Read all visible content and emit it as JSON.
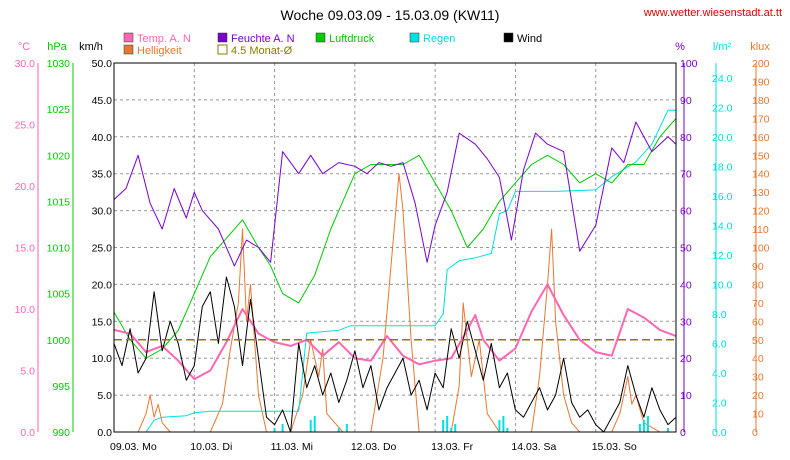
{
  "header": {
    "title": "Woche 09.03.09 - 15.03.09 (KW11)",
    "url": "www.wetter.wiesenstadt.at.tt"
  },
  "colors": {
    "temp": "#ff66b3",
    "humidity": "#7a00cc",
    "pressure": "#00cc00",
    "rain": "#00e0e0",
    "wind": "#000000",
    "brightness": "#e87830",
    "avg": "#8a7a00",
    "grid": "#999999"
  },
  "legend": [
    {
      "key": "temp",
      "label": "Temp. A. N",
      "icon": "filled-square"
    },
    {
      "key": "humidity",
      "label": "Feuchte A. N",
      "icon": "filled-square"
    },
    {
      "key": "pressure",
      "label": "Luftdruck",
      "icon": "filled-square"
    },
    {
      "key": "rain",
      "label": "Regen",
      "icon": "filled-square"
    },
    {
      "key": "wind",
      "label": "Wind",
      "icon": "filled-square"
    },
    {
      "key": "brightness",
      "label": "Helligkeit",
      "icon": "filled-square"
    },
    {
      "key": "avg",
      "label": "4.5 Monat-Ø",
      "icon": "hollow-square"
    }
  ],
  "chart_data": {
    "type": "line",
    "title": "Woche 09.03.09 - 15.03.09 (KW11)",
    "x_unit": "days",
    "x_range": [
      0,
      7
    ],
    "x_ticks": [
      "09.03. Mo",
      "10.03. Di",
      "11.03. Mi",
      "12.03. Do",
      "13.03. Fr",
      "14.03. Sa",
      "15.03. So"
    ],
    "grid": true,
    "legend_position": "top",
    "axes": {
      "temp": {
        "unit": "°C",
        "range": [
          0,
          30
        ],
        "ticks": [
          "0.0",
          "5.0",
          "10.0",
          "15.0",
          "20.0",
          "25.0",
          "30.0"
        ]
      },
      "pressure": {
        "unit": "hPa",
        "range": [
          990,
          1030
        ],
        "ticks": [
          "990",
          "995",
          "1000",
          "1005",
          "1010",
          "1015",
          "1020",
          "1025",
          "1030"
        ]
      },
      "wind": {
        "unit": "km/h",
        "range": [
          0,
          50
        ],
        "ticks": [
          "0.0",
          "5.0",
          "10.0",
          "15.0",
          "20.0",
          "25.0",
          "30.0",
          "35.0",
          "40.0",
          "45.0",
          "50.0"
        ]
      },
      "humidity": {
        "unit": "%",
        "range": [
          0,
          100
        ],
        "ticks": [
          "0",
          "10",
          "20",
          "30",
          "40",
          "50",
          "60",
          "70",
          "80",
          "90",
          "100"
        ]
      },
      "rain": {
        "unit": "l/m²",
        "range": [
          0,
          25
        ],
        "ticks": [
          "0.0",
          "2.0",
          "4.0",
          "6.0",
          "8.0",
          "10.0",
          "12.0",
          "14.0",
          "16.0",
          "18.0",
          "20.0",
          "22.0",
          "24.0"
        ]
      },
      "brightness": {
        "unit": "klux",
        "range": [
          0,
          200
        ],
        "ticks": [
          "0",
          "10",
          "20",
          "30",
          "40",
          "50",
          "60",
          "70",
          "80",
          "90",
          "100",
          "110",
          "120",
          "130",
          "140",
          "150",
          "160",
          "170",
          "180",
          "190",
          "200"
        ]
      }
    },
    "series": [
      {
        "name": "Temp. A. N",
        "key": "temp",
        "axis": "temp",
        "x": [
          0,
          0.2,
          0.4,
          0.6,
          0.8,
          1.0,
          1.2,
          1.4,
          1.6,
          1.8,
          2.0,
          2.2,
          2.4,
          2.6,
          2.8,
          3.0,
          3.2,
          3.4,
          3.6,
          3.8,
          4.0,
          4.2,
          4.4,
          4.5,
          4.6,
          4.8,
          5.0,
          5.2,
          5.4,
          5.6,
          5.8,
          6.0,
          6.2,
          6.4,
          6.6,
          6.8,
          7.0
        ],
        "values": [
          8.3,
          8.0,
          6.5,
          7.0,
          5.8,
          4.3,
          5.0,
          7.3,
          10.0,
          8.0,
          7.3,
          7.0,
          7.5,
          6.2,
          7.3,
          6.0,
          5.8,
          7.8,
          6.2,
          5.5,
          5.8,
          6.0,
          8.3,
          9.5,
          7.5,
          5.8,
          6.8,
          9.8,
          12.0,
          9.5,
          7.5,
          6.5,
          6.2,
          10.0,
          9.3,
          8.3,
          7.8
        ]
      },
      {
        "name": "Feuchte A. N",
        "key": "humidity",
        "axis": "humidity",
        "x": [
          0,
          0.15,
          0.3,
          0.45,
          0.6,
          0.75,
          0.9,
          1.0,
          1.1,
          1.3,
          1.5,
          1.65,
          1.8,
          1.95,
          2.1,
          2.3,
          2.45,
          2.6,
          2.8,
          3.0,
          3.15,
          3.3,
          3.45,
          3.6,
          3.75,
          3.9,
          4.0,
          4.15,
          4.3,
          4.5,
          4.65,
          4.8,
          4.95,
          5.1,
          5.25,
          5.4,
          5.6,
          5.8,
          6.0,
          6.2,
          6.35,
          6.5,
          6.7,
          6.9,
          7.0
        ],
        "values": [
          63,
          66,
          75,
          62,
          55,
          66,
          58,
          65,
          60,
          55,
          45,
          52,
          50,
          46,
          76,
          70,
          75,
          70,
          73,
          72,
          70,
          73,
          72,
          73,
          62,
          46,
          56,
          65,
          81,
          78,
          74,
          69,
          52,
          71,
          81,
          78,
          76,
          49,
          56,
          77,
          73,
          84,
          76,
          80,
          78
        ]
      },
      {
        "name": "Luftdruck",
        "key": "pressure",
        "axis": "pressure",
        "x": [
          0,
          0.2,
          0.4,
          0.6,
          0.8,
          1.0,
          1.2,
          1.4,
          1.6,
          1.8,
          1.95,
          2.1,
          2.3,
          2.5,
          2.7,
          2.9,
          3.0,
          3.2,
          3.4,
          3.6,
          3.8,
          4.0,
          4.2,
          4.4,
          4.6,
          4.8,
          5.0,
          5.2,
          5.4,
          5.6,
          5.8,
          6.0,
          6.2,
          6.4,
          6.6,
          6.8,
          7.0
        ],
        "values": [
          1003,
          1000,
          998,
          999,
          1001,
          1005,
          1009,
          1011,
          1013,
          1010,
          1008,
          1005,
          1004,
          1007,
          1012,
          1016,
          1018,
          1019,
          1019,
          1019,
          1020,
          1017,
          1014,
          1010,
          1012,
          1015,
          1017,
          1019,
          1020,
          1019,
          1017,
          1018,
          1017,
          1019,
          1019,
          1022,
          1024
        ]
      },
      {
        "name": "Regen",
        "key": "rain",
        "axis": "rain",
        "x": [
          0,
          0.4,
          0.5,
          0.6,
          0.9,
          1.0,
          1.2,
          1.5,
          2.0,
          2.3,
          2.4,
          2.8,
          2.95,
          3.0,
          3.5,
          3.9,
          4.0,
          4.1,
          4.15,
          4.3,
          4.5,
          4.7,
          4.8,
          4.9,
          5.0,
          5.5,
          6.0,
          6.2,
          6.5,
          6.7,
          6.9,
          7.0
        ],
        "values": [
          0,
          0,
          0.8,
          1.0,
          1.1,
          1.3,
          1.4,
          1.4,
          1.4,
          1.4,
          6.7,
          6.9,
          7.2,
          7.2,
          7.2,
          7.2,
          7.2,
          8.0,
          11.0,
          11.6,
          11.8,
          12.1,
          14.8,
          15.0,
          16.3,
          16.3,
          16.4,
          17.3,
          18.3,
          19.5,
          21.8,
          21.8
        ]
      },
      {
        "name": "Wind",
        "key": "wind",
        "axis": "wind",
        "x": [
          0,
          0.1,
          0.2,
          0.3,
          0.4,
          0.5,
          0.6,
          0.7,
          0.8,
          0.9,
          1.0,
          1.1,
          1.2,
          1.3,
          1.4,
          1.5,
          1.6,
          1.7,
          1.8,
          1.9,
          2.0,
          2.1,
          2.2,
          2.3,
          2.4,
          2.5,
          2.6,
          2.7,
          2.8,
          2.9,
          3.0,
          3.1,
          3.2,
          3.3,
          3.4,
          3.5,
          3.6,
          3.7,
          3.8,
          3.9,
          4.0,
          4.1,
          4.2,
          4.3,
          4.4,
          4.5,
          4.6,
          4.7,
          4.8,
          4.9,
          5.0,
          5.1,
          5.2,
          5.3,
          5.4,
          5.5,
          5.6,
          5.7,
          5.8,
          5.9,
          6.0,
          6.1,
          6.2,
          6.3,
          6.4,
          6.5,
          6.6,
          6.7,
          6.8,
          6.9,
          7.0
        ],
        "values": [
          12,
          9,
          14,
          8,
          10,
          19,
          11,
          15,
          12,
          7,
          9,
          17,
          19,
          12,
          21,
          17,
          9,
          18,
          10,
          2,
          1,
          3,
          0,
          12,
          6,
          9,
          5,
          8,
          4,
          7,
          11,
          6,
          9,
          3,
          6,
          8,
          10,
          5,
          7,
          3,
          8,
          6,
          14,
          10,
          15,
          11,
          7,
          12,
          6,
          8,
          3,
          2,
          4,
          6,
          3,
          5,
          10,
          4,
          2,
          3,
          1,
          0,
          2,
          4,
          9,
          5,
          2,
          6,
          3,
          1,
          2
        ]
      },
      {
        "name": "Helligkeit",
        "key": "brightness",
        "axis": "brightness",
        "x": [
          0,
          0.3,
          0.4,
          0.45,
          0.5,
          0.55,
          0.6,
          0.7,
          1.2,
          1.35,
          1.45,
          1.55,
          1.6,
          1.65,
          1.7,
          1.8,
          1.9,
          2.2,
          2.35,
          2.45,
          2.55,
          2.6,
          2.65,
          2.75,
          2.85,
          3.2,
          3.35,
          3.45,
          3.55,
          3.6,
          3.7,
          3.8,
          4.2,
          4.3,
          4.35,
          4.45,
          4.55,
          4.65,
          4.8,
          5.2,
          5.3,
          5.4,
          5.45,
          5.5,
          5.6,
          5.7,
          5.8,
          6.2,
          6.3,
          6.4,
          6.45,
          6.5,
          6.6,
          6.8,
          7.0
        ],
        "values": [
          0,
          0,
          10,
          20,
          8,
          15,
          5,
          0,
          0,
          15,
          45,
          70,
          110,
          60,
          80,
          20,
          0,
          0,
          20,
          50,
          30,
          45,
          10,
          5,
          0,
          0,
          40,
          90,
          140,
          120,
          50,
          0,
          0,
          25,
          70,
          30,
          50,
          10,
          0,
          0,
          30,
          80,
          110,
          60,
          20,
          5,
          0,
          0,
          10,
          30,
          15,
          20,
          5,
          0,
          0
        ]
      },
      {
        "name": "4.5 Monat-Ø",
        "key": "avg",
        "axis": "temp",
        "x": [
          0,
          7
        ],
        "values": [
          7.5,
          7.5
        ]
      }
    ]
  }
}
